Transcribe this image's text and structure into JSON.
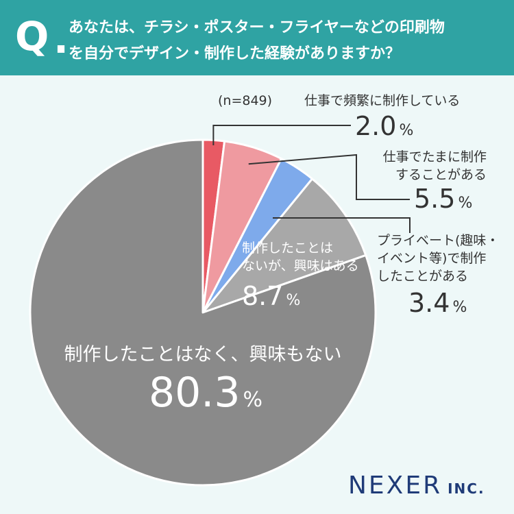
{
  "header": {
    "q_letter": "Q",
    "q_dot": ".",
    "question_line1": "あなたは、チラシ・ポスター・フライヤーなどの印刷物",
    "question_line2": "を自分でデザイン・制作した経験がありますか？"
  },
  "colors": {
    "header_bg": "#2fa3a3",
    "background": "#eef8f8",
    "slice_often": "#e85a64",
    "slice_sometimes": "#ef9aa0",
    "slice_private": "#7eaaeb",
    "slice_interested": "#a8a8a8",
    "slice_not_interested": "#8a8a8a",
    "text_dark": "#333333",
    "logo": "#1f3b78"
  },
  "chart_data": {
    "type": "pie",
    "sample_note": "(n=849)",
    "unit": "%",
    "slices": [
      {
        "label_lines": [
          "仕事で頻繁に制作している"
        ],
        "value": 2.0,
        "value_text": "2.0",
        "color": "#e85a64"
      },
      {
        "label_lines": [
          "仕事でたまに制作",
          "することがある"
        ],
        "value": 5.5,
        "value_text": "5.5",
        "color": "#ef9aa0"
      },
      {
        "label_lines": [
          "プライベート(趣味・",
          "イベント等)で制作",
          "したことがある"
        ],
        "value": 3.4,
        "value_text": "3.4",
        "color": "#7eaaeb"
      },
      {
        "label_lines": [
          "制作したことは",
          "ないが、興味はある"
        ],
        "value": 8.7,
        "value_text": "8.7",
        "color": "#a8a8a8"
      },
      {
        "label_lines": [
          "制作したことはなく、興味もない"
        ],
        "value": 80.3,
        "value_text": "80.3",
        "color": "#8a8a8a"
      }
    ]
  },
  "logo": {
    "main": "NEXER",
    "sub": "INC."
  }
}
